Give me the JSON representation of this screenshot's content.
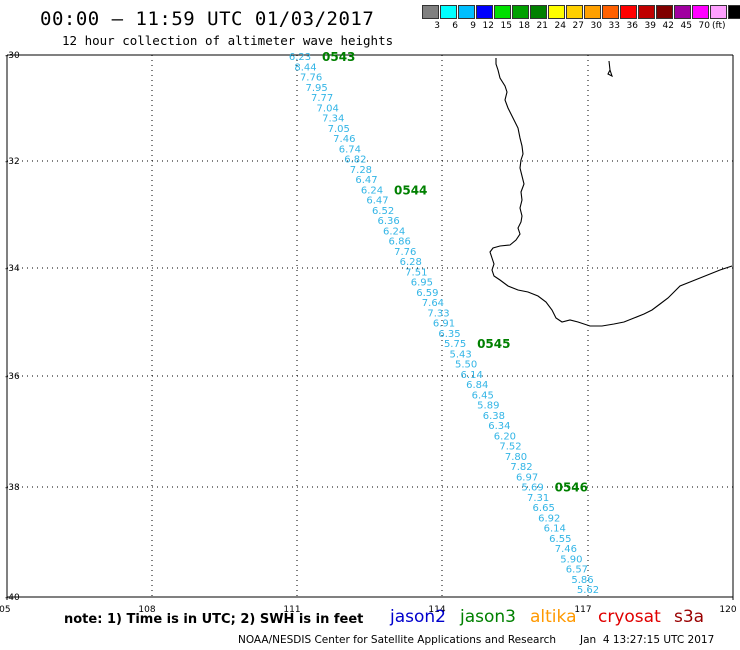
{
  "header": {
    "title": "00:00 – 11:59 UTC 01/03/2017",
    "subtitle": "12 hour collection of altimeter wave heights"
  },
  "legend": {
    "colors": [
      "#808080",
      "#00ffff",
      "#00bfff",
      "#0000ff",
      "#00e000",
      "#00a000",
      "#008000",
      "#ffff00",
      "#ffd000",
      "#ffa000",
      "#ff6000",
      "#ff0000",
      "#c00000",
      "#800000",
      "#a000a0",
      "#ff00ff",
      "#ffa0ff",
      "#000000"
    ],
    "labels": [
      "3",
      "6",
      "9",
      "12",
      "15",
      "18",
      "21",
      "24",
      "27",
      "30",
      "33",
      "36",
      "39",
      "42",
      "45",
      "70"
    ],
    "unit": "(ft)"
  },
  "axes": {
    "lat_labels": [
      "-30",
      "-32",
      "-34",
      "-36",
      "-38",
      "-40"
    ],
    "lon_labels": [
      "105",
      "108",
      "111",
      "114",
      "117",
      "120"
    ]
  },
  "track": {
    "color": "#33b5e6",
    "values": [
      "6.23",
      "8.44",
      "7.76",
      "7.95",
      "7.77",
      "7.04",
      "7.34",
      "7.05",
      "7.46",
      "6.74",
      "6.82",
      "7.28",
      "6.47",
      "6.24",
      "6.47",
      "6.52",
      "6.36",
      "6.24",
      "6.86",
      "7.76",
      "6.28",
      "7.51",
      "6.95",
      "6.59",
      "7.64",
      "7.33",
      "6.91",
      "6.35",
      "5.75",
      "5.43",
      "5.50",
      "6.14",
      "6.84",
      "6.45",
      "5.89",
      "6.38",
      "6.34",
      "6.20",
      "7.52",
      "7.80",
      "7.82",
      "6.97",
      "5.69",
      "7.31",
      "6.65",
      "6.92",
      "6.14",
      "6.55",
      "7.46",
      "5.90",
      "6.57",
      "5.86",
      "5.62"
    ],
    "times": [
      {
        "label": "0543",
        "index": 0
      },
      {
        "label": "0544",
        "index": 13
      },
      {
        "label": "0545",
        "index": 28
      },
      {
        "label": "0546",
        "index": 42
      }
    ],
    "time_color": "#008000"
  },
  "footer": {
    "note": "note: 1) Time is in UTC; 2) SWH is in feet",
    "satellites": [
      {
        "name": "jason2",
        "color": "#0000cc"
      },
      {
        "name": "jason3",
        "color": "#008000"
      },
      {
        "name": "altika",
        "color": "#ff9900"
      },
      {
        "name": "cryosat",
        "color": "#e00000"
      },
      {
        "name": "s3a",
        "color": "#990000"
      }
    ],
    "credit": "NOAA/NESDIS Center for Satellite Applications and Research",
    "timestamp": "Jan  4 13:27:15 UTC 2017"
  }
}
